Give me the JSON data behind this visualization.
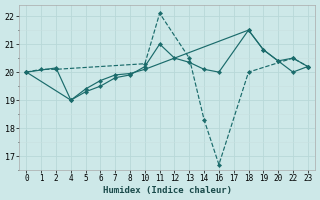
{
  "xlabel": "Humidex (Indice chaleur)",
  "bg_color": "#cde8e8",
  "grid_color_major": "#b8d8d8",
  "grid_color_minor": "#c8e0e0",
  "line_color": "#1a6b6b",
  "yticks": [
    17,
    18,
    19,
    20,
    21,
    22
  ],
  "ylim": [
    16.5,
    22.4
  ],
  "x_positions": [
    0,
    1,
    2,
    3,
    4,
    5,
    6,
    7,
    8,
    9,
    10,
    11,
    12,
    13,
    14,
    15,
    16,
    17,
    18,
    19
  ],
  "x_labels": [
    "0",
    "1",
    "2",
    "4",
    "5",
    "6",
    "7",
    "8",
    "10",
    "11",
    "12",
    "13",
    "14",
    "16",
    "17",
    "18",
    "19",
    "20",
    "22",
    "23"
  ],
  "series1_x": [
    0,
    1,
    2,
    8,
    9,
    11,
    12,
    13,
    15,
    18,
    19
  ],
  "series1_y": [
    20.0,
    20.1,
    20.1,
    20.3,
    22.1,
    20.5,
    18.3,
    16.7,
    20.0,
    20.5,
    20.2
  ],
  "series2_x": [
    0,
    2,
    3,
    4,
    5,
    6,
    7,
    8,
    9,
    10,
    11,
    12,
    13,
    15,
    16,
    17,
    18,
    19
  ],
  "series2_y": [
    20.0,
    20.15,
    19.0,
    19.3,
    19.5,
    19.8,
    19.9,
    20.2,
    21.0,
    20.5,
    20.35,
    20.1,
    20.0,
    21.5,
    20.8,
    20.4,
    20.0,
    20.2
  ],
  "series3_x": [
    0,
    3,
    4,
    5,
    6,
    7,
    8,
    15,
    16,
    17,
    18,
    19
  ],
  "series3_y": [
    20.0,
    19.0,
    19.4,
    19.7,
    19.9,
    19.95,
    20.1,
    21.5,
    20.8,
    20.4,
    20.5,
    20.2
  ]
}
